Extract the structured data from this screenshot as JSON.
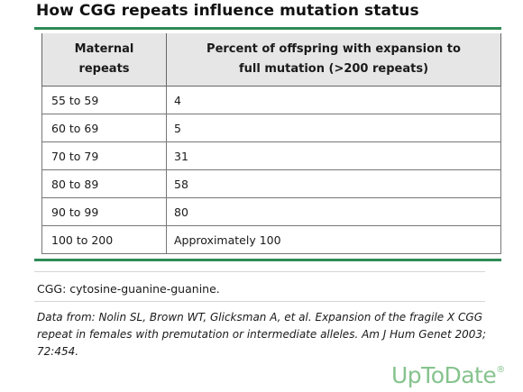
{
  "title": "How CGG repeats influence mutation status",
  "table": {
    "headers": {
      "col1_line1": "Maternal",
      "col1_line2": "repeats",
      "col2_line1": "Percent of offspring with expansion to",
      "col2_line2": "full mutation (>200 repeats)"
    },
    "rows": [
      [
        "55 to 59",
        "4"
      ],
      [
        "60 to 69",
        "5"
      ],
      [
        "70 to 79",
        "31"
      ],
      [
        "80 to 89",
        "58"
      ],
      [
        "90 to 99",
        "80"
      ],
      [
        "100 to 200",
        "Approximately 100"
      ]
    ]
  },
  "footnote": "CGG: cytosine-guanine-guanine.",
  "citation": "Data from: Nolin SL, Brown WT, Glicksman A, et al. Expansion of the fragile X CGG repeat in females with premutation or intermediate alleles. Am J Hum Genet 2003; 72:454.",
  "brand": {
    "name": "UpToDate",
    "mark": "®",
    "color": "#86c38e"
  },
  "colors": {
    "accent": "#2e8b57",
    "header_bg": "#e6e6e6"
  }
}
